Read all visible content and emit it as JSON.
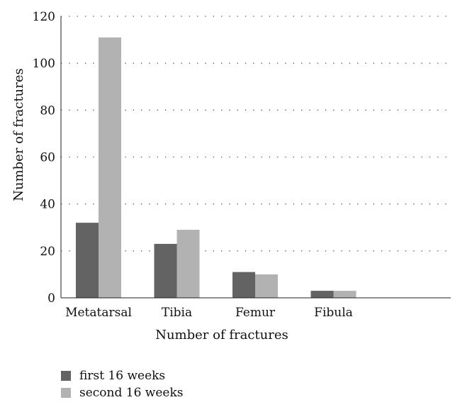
{
  "chart_data": {
    "type": "bar",
    "categories": [
      "Metatarsal",
      "Tibia",
      "Femur",
      "Fibula"
    ],
    "series": [
      {
        "name": "first 16 weeks",
        "values": [
          32,
          23,
          11,
          3
        ],
        "color": "#636363"
      },
      {
        "name": "second 16 weeks",
        "values": [
          111,
          29,
          10,
          3
        ],
        "color": "#b2b2b2"
      }
    ],
    "title": "",
    "xlabel": "Number of fractures",
    "ylabel": "Number of fractures",
    "ylim": [
      0,
      120
    ],
    "yticks": [
      0,
      20,
      40,
      60,
      80,
      100,
      120
    ],
    "grid": true,
    "legend_position": "bottom-left"
  }
}
